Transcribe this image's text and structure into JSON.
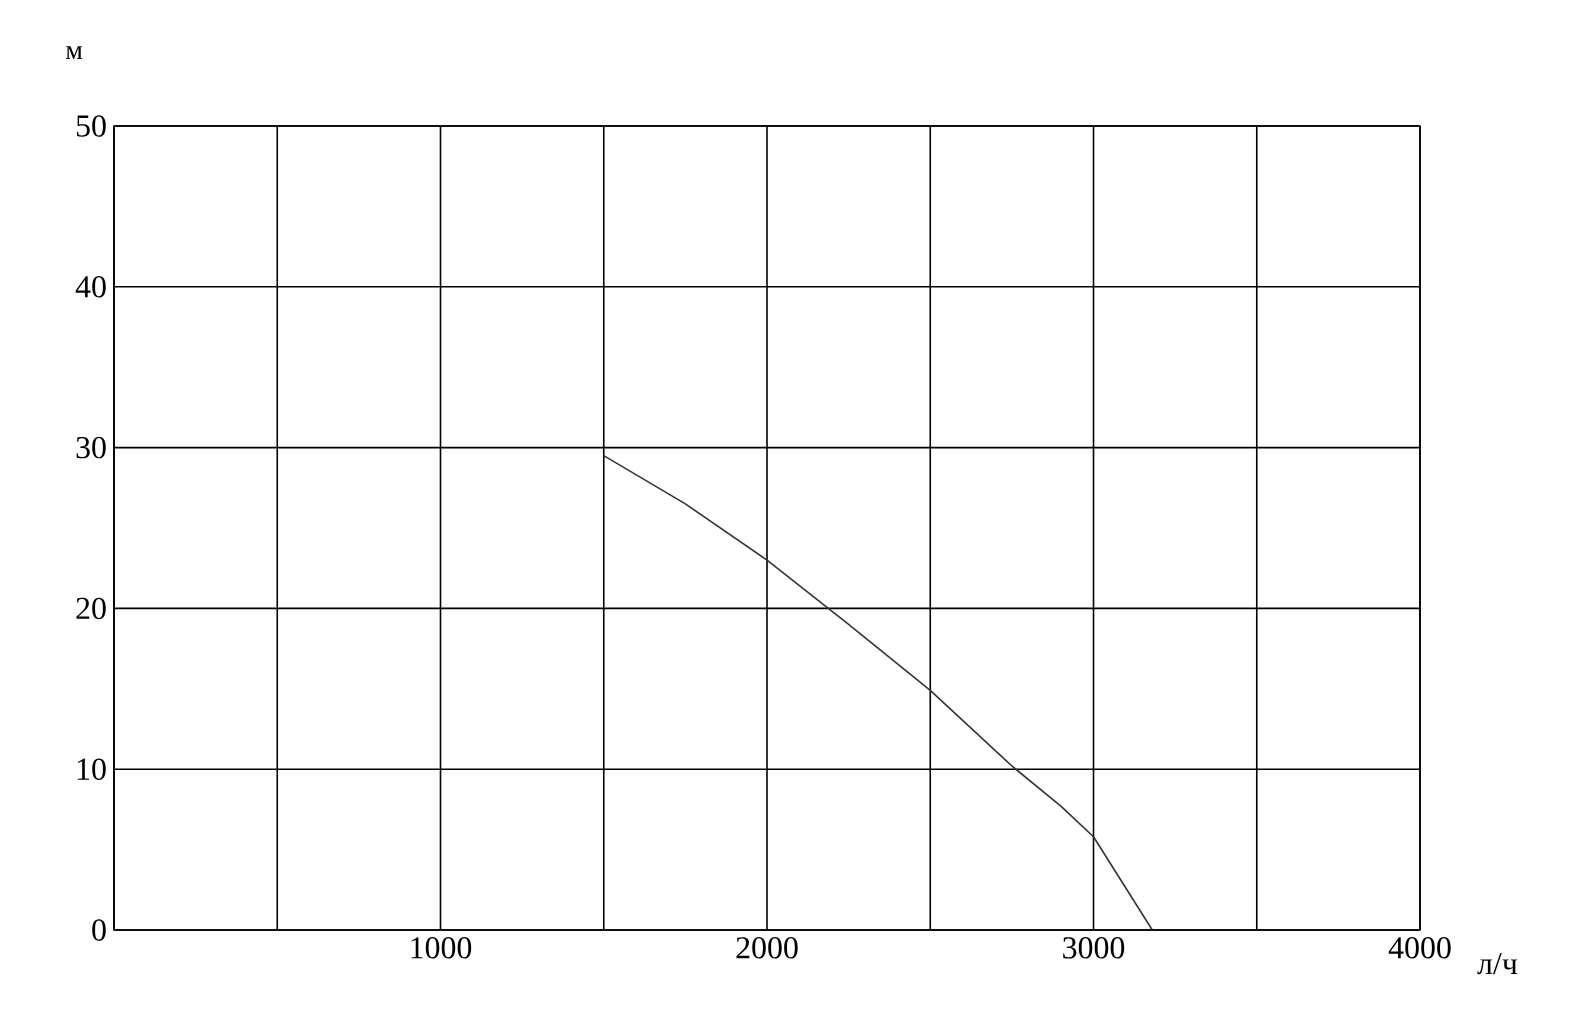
{
  "chart_data": {
    "type": "line",
    "xlabel": "л/ч",
    "ylabel": "м",
    "x": [
      1500,
      1750,
      2000,
      2250,
      2500,
      2750,
      2900,
      3000,
      3180
    ],
    "series": [
      {
        "color": "#333333",
        "values": [
          29.5,
          26.5,
          23.0,
          19.0,
          14.9,
          10.2,
          7.7,
          5.8,
          0
        ]
      }
    ],
    "xlim": [
      0,
      4000
    ],
    "xticks": [
      {
        "value": 0,
        "label": null
      },
      {
        "value": 500,
        "label": null
      },
      1000,
      {
        "value": 1500,
        "label": null
      },
      2000,
      {
        "value": 2500,
        "label": null
      },
      3000,
      {
        "value": 3500,
        "label": null
      },
      4000
    ],
    "ylim": [
      0,
      50
    ],
    "yticks": [
      0,
      10,
      20,
      30,
      40,
      50
    ],
    "grid": true,
    "marker": "none",
    "line_style": "solid"
  }
}
